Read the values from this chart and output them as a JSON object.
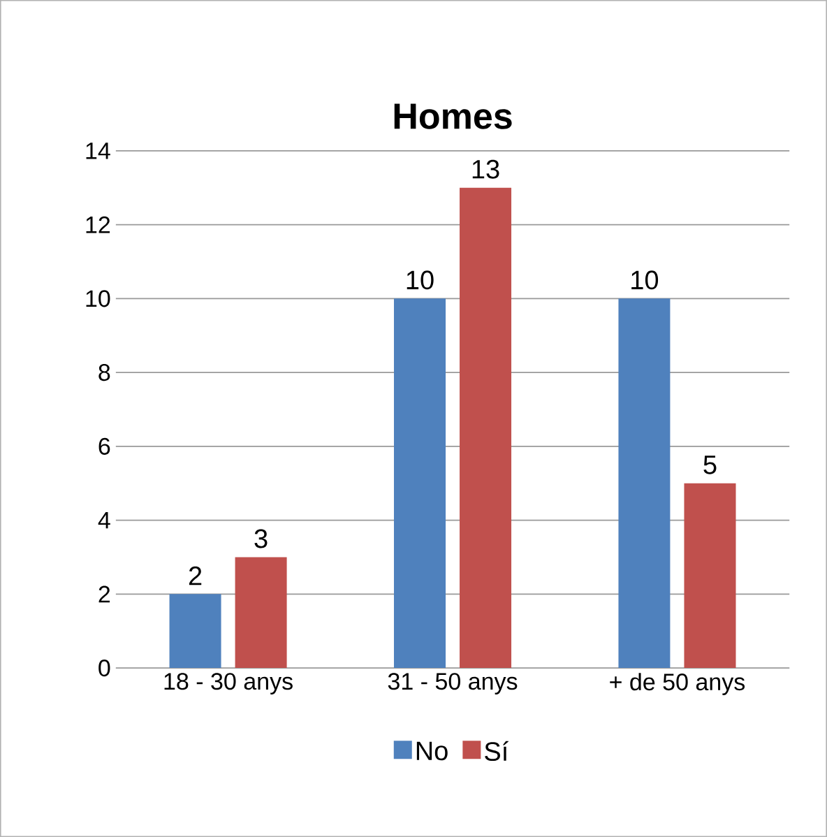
{
  "chart_data": {
    "type": "bar",
    "title": "Homes",
    "categories": [
      "18 - 30 anys",
      "31 - 50 anys",
      "+ de 50 anys"
    ],
    "series": [
      {
        "name": "No",
        "color": "#4f81bd",
        "values": [
          2,
          10,
          10
        ]
      },
      {
        "name": "Sí",
        "color": "#c0504d",
        "values": [
          3,
          13,
          5
        ]
      }
    ],
    "ylim": [
      0,
      14
    ],
    "yticks": [
      0,
      2,
      4,
      6,
      8,
      10,
      12,
      14
    ],
    "grid": "y",
    "legend": "bottom",
    "data_labels": true
  }
}
